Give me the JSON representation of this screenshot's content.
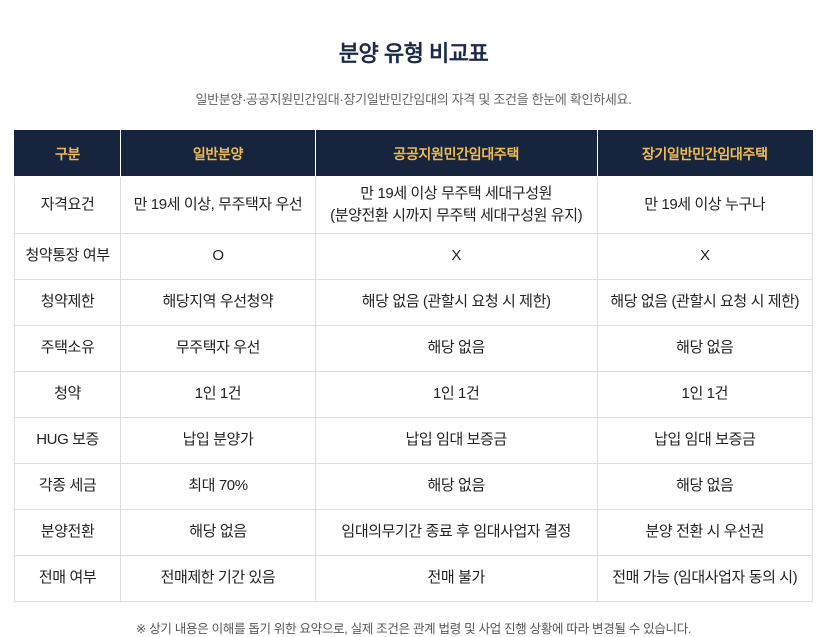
{
  "page": {
    "title": "분양 유형 비교표",
    "subtitle": "일반분양·공공지원민간임대·장기일반민간임대의 자격 및 조건을 한눈에 확인하세요.",
    "footnote": "※ 상기 내용은 이해를 돕기 위한 요약으로, 실제 조건은 관계 법령 및 사업 진행 상황에 따라 변경될 수 있습니다."
  },
  "colors": {
    "header_bg": "#17243d",
    "header_text": "#eebc52",
    "title_text": "#1b2a4a",
    "cell_border": "#dddddd",
    "cell_text": "#222222",
    "subtitle_text": "#666666",
    "footnote_text": "#555555"
  },
  "chart_data": {
    "type": "table",
    "title": "분양 유형 비교표",
    "headers": [
      "구분",
      "일반분양",
      "공공지원민간임대주택",
      "장기일반민간임대주택"
    ],
    "rows": [
      [
        "자격요건",
        "만 19세 이상, 무주택자 우선",
        "만 19세 이상 무주택 세대구성원\n(분양전환 시까지 무주택 세대구성원 유지)",
        "만 19세 이상 누구나"
      ],
      [
        "청약통장 여부",
        "O",
        "X",
        "X"
      ],
      [
        "청약제한",
        "해당지역 우선청약",
        "해당 없음 (관할시 요청 시 제한)",
        "해당 없음 (관할시 요청 시 제한)"
      ],
      [
        "주택소유",
        "무주택자 우선",
        "해당 없음",
        "해당 없음"
      ],
      [
        "청약",
        "1인 1건",
        "1인 1건",
        "1인 1건"
      ],
      [
        "HUG 보증",
        "납입 분양가",
        "납입 임대 보증금",
        "납입 임대 보증금"
      ],
      [
        "각종 세금",
        "최대 70%",
        "해당 없음",
        "해당 없음"
      ],
      [
        "분양전환",
        "해당 없음",
        "임대의무기간 종료 후 임대사업자 결정",
        "분양 전환 시 우선권"
      ],
      [
        "전매 여부",
        "전매제한 기간 있음",
        "전매 불가",
        "전매 가능 (임대사업자 동의 시)"
      ]
    ]
  }
}
